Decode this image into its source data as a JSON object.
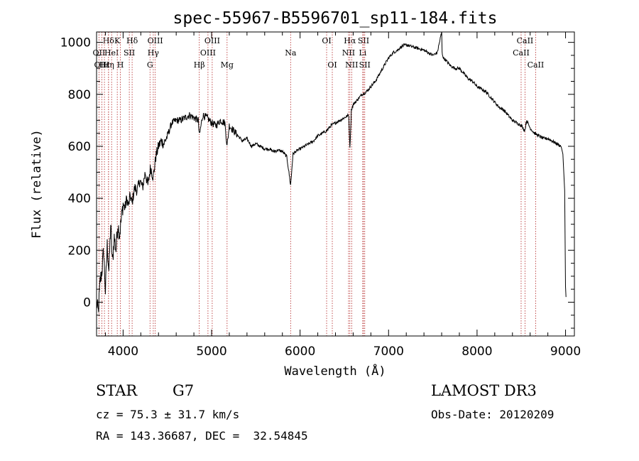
{
  "colors": {
    "spectrum": "#000000",
    "line_marker": "#b22222",
    "axes": "#000000",
    "background": "#ffffff"
  },
  "chart_data": {
    "type": "line",
    "title": "spec-55967-B5596701_sp11-184.fits",
    "xlabel": "Wavelength (Å)",
    "ylabel": "Flux (relative)",
    "xlim": [
      3700,
      9100
    ],
    "ylim": [
      -130,
      1040
    ],
    "x_ticks": [
      4000,
      5000,
      6000,
      7000,
      8000,
      9000
    ],
    "y_ticks": [
      0,
      200,
      400,
      600,
      800,
      1000
    ],
    "grid": false,
    "series": [
      {
        "name": "spectrum",
        "x": [
          3700,
          3720,
          3740,
          3760,
          3780,
          3800,
          3820,
          3840,
          3860,
          3880,
          3900,
          3920,
          3940,
          3960,
          3980,
          4000,
          4020,
          4040,
          4060,
          4080,
          4100,
          4130,
          4160,
          4190,
          4220,
          4250,
          4280,
          4310,
          4340,
          4370,
          4400,
          4430,
          4460,
          4500,
          4550,
          4600,
          4650,
          4700,
          4750,
          4800,
          4850,
          4861,
          4900,
          4950,
          5000,
          5050,
          5100,
          5150,
          5175,
          5200,
          5250,
          5300,
          5350,
          5400,
          5450,
          5500,
          5550,
          5600,
          5650,
          5700,
          5750,
          5800,
          5850,
          5893,
          5920,
          5950,
          6000,
          6050,
          6100,
          6150,
          6200,
          6250,
          6300,
          6350,
          6400,
          6450,
          6500,
          6550,
          6563,
          6580,
          6600,
          6650,
          6700,
          6750,
          6800,
          6850,
          6900,
          6950,
          7000,
          7050,
          7100,
          7150,
          7200,
          7250,
          7300,
          7350,
          7400,
          7450,
          7500,
          7550,
          7600,
          7605,
          7620,
          7650,
          7700,
          7750,
          7800,
          7850,
          7900,
          7950,
          8000,
          8050,
          8100,
          8150,
          8200,
          8250,
          8300,
          8350,
          8400,
          8450,
          8500,
          8540,
          8560,
          8600,
          8650,
          8700,
          8750,
          8800,
          8850,
          8900,
          8950,
          8970,
          8990,
          9000,
          9005
        ],
        "values": [
          0,
          -40,
          80,
          120,
          200,
          40,
          220,
          120,
          300,
          150,
          250,
          200,
          300,
          260,
          320,
          380,
          360,
          400,
          370,
          410,
          380,
          440,
          430,
          470,
          440,
          500,
          450,
          520,
          480,
          560,
          600,
          620,
          610,
          640,
          690,
          700,
          700,
          710,
          720,
          710,
          700,
          640,
          720,
          710,
          690,
          680,
          700,
          690,
          600,
          680,
          660,
          640,
          620,
          630,
          600,
          610,
          600,
          590,
          590,
          580,
          585,
          580,
          560,
          450,
          570,
          580,
          590,
          600,
          610,
          620,
          640,
          650,
          660,
          680,
          690,
          700,
          710,
          720,
          590,
          740,
          760,
          780,
          800,
          810,
          830,
          850,
          880,
          910,
          940,
          960,
          970,
          985,
          990,
          985,
          980,
          975,
          970,
          960,
          950,
          960,
          1040,
          960,
          940,
          930,
          910,
          900,
          900,
          880,
          860,
          850,
          830,
          820,
          810,
          790,
          770,
          750,
          740,
          720,
          700,
          690,
          680,
          660,
          700,
          670,
          650,
          640,
          630,
          630,
          620,
          610,
          600,
          570,
          430,
          60,
          20
        ]
      }
    ],
    "line_markers": [
      {
        "label": "Hδ",
        "x": 3835,
        "row": 1
      },
      {
        "label": "OII",
        "x": 3727,
        "row": 2
      },
      {
        "label": "OIII",
        "x": 3760,
        "row": 3
      },
      {
        "label": "Hε",
        "x": 3789,
        "row": 3
      },
      {
        "label": "Hη",
        "x": 3835,
        "row": 3
      },
      {
        "label": "HeI",
        "x": 3870,
        "row": 2
      },
      {
        "label": "K",
        "x": 3934,
        "row": 1
      },
      {
        "label": "H",
        "x": 3969,
        "row": 3
      },
      {
        "label": "SII",
        "x": 4070,
        "row": 2
      },
      {
        "label": "Hδ",
        "x": 4102,
        "row": 1
      },
      {
        "label": "OIII",
        "x": 4363,
        "row": 1
      },
      {
        "label": "Hγ",
        "x": 4341,
        "row": 2
      },
      {
        "label": "G",
        "x": 4304,
        "row": 3
      },
      {
        "label": "Hβ",
        "x": 4861,
        "row": 3
      },
      {
        "label": "OIII",
        "x": 5007,
        "row": 1
      },
      {
        "label": "OIII",
        "x": 4959,
        "row": 2
      },
      {
        "label": "Mg",
        "x": 5175,
        "row": 3
      },
      {
        "label": "Na",
        "x": 5893,
        "row": 2
      },
      {
        "label": "OI",
        "x": 6300,
        "row": 1
      },
      {
        "label": "OI",
        "x": 6364,
        "row": 3
      },
      {
        "label": "Hα",
        "x": 6563,
        "row": 1
      },
      {
        "label": "NII",
        "x": 6548,
        "row": 2
      },
      {
        "label": "NII",
        "x": 6583,
        "row": 3
      },
      {
        "label": "SII",
        "x": 6717,
        "row": 1
      },
      {
        "label": "Li",
        "x": 6708,
        "row": 2
      },
      {
        "label": "SII",
        "x": 6731,
        "row": 3
      },
      {
        "label": "CaII",
        "x": 8542,
        "row": 1
      },
      {
        "label": "CaII",
        "x": 8498,
        "row": 2
      },
      {
        "label": "CaII",
        "x": 8662,
        "row": 3
      }
    ]
  },
  "info": {
    "object_class": "STAR",
    "subclass": "G7",
    "survey": "LAMOST DR3",
    "cz": "cz = 75.3 ± 31.7 km/s",
    "obs_date": "Obs-Date: 20120209",
    "coords": "RA = 143.36687, DEC =  32.54845"
  }
}
